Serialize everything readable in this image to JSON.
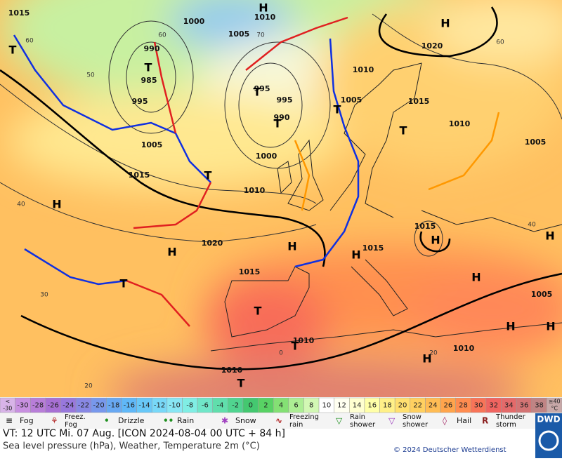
{
  "map": {
    "isobar_labels": [
      "1015",
      "1010",
      "1000",
      "1005",
      "990",
      "985",
      "995",
      "1005",
      "1015",
      "1010",
      "995",
      "995",
      "990",
      "1000",
      "1010",
      "1005",
      "1015",
      "1020",
      "1010",
      "1005",
      "1020",
      "1015",
      "1015",
      "1015",
      "1005",
      "1010",
      "1010",
      "1010"
    ],
    "isotherm_labels": [
      "60",
      "70",
      "60",
      "50",
      "40",
      "30",
      "20",
      "60",
      "40",
      "20",
      "0"
    ],
    "centers": [
      "H",
      "T",
      "T",
      "T",
      "T",
      "H",
      "H",
      "T",
      "H",
      "H",
      "H",
      "T",
      "T",
      "T",
      "T",
      "H",
      "H",
      "H",
      "H",
      "H",
      "T",
      "H",
      "T"
    ]
  },
  "color_scale": {
    "low": {
      "top": "<",
      "bottom": "-30",
      "color": "#d8b4e8"
    },
    "values": [
      -30,
      -28,
      -26,
      -24,
      -22,
      -20,
      -18,
      -16,
      -14,
      -12,
      -10,
      -8,
      -6,
      -4,
      -2,
      0,
      2,
      4,
      6,
      8,
      10,
      12,
      14,
      16,
      18,
      20,
      22,
      24,
      26,
      28,
      30,
      32,
      34,
      36,
      38
    ],
    "colors": [
      "#c890e0",
      "#b87ed8",
      "#a870d4",
      "#9878dc",
      "#8888e4",
      "#7898ec",
      "#68a8f2",
      "#60b8f8",
      "#68c8f8",
      "#78d8f8",
      "#88e6f4",
      "#80eee4",
      "#70e6c8",
      "#60deac",
      "#50d490",
      "#44c870",
      "#58d264",
      "#84e074",
      "#acee94",
      "#d2f8b4",
      "#ffffff",
      "#fffff0",
      "#ffffd0",
      "#ffffa8",
      "#fff088",
      "#ffe070",
      "#ffd060",
      "#ffbc54",
      "#ffa44c",
      "#ff8c50",
      "#f87458",
      "#f06460",
      "#e46a6a",
      "#d47474",
      "#c08484"
    ],
    "high": {
      "top": "≥40",
      "bottom": "°C",
      "color": "#c8a8a8"
    }
  },
  "legend": [
    {
      "lines": [
        "Fog"
      ]
    },
    {
      "lines": [
        "Freez.",
        "Fog"
      ]
    },
    {
      "lines": [
        "Drizzle"
      ]
    },
    {
      "lines": [
        "Rain"
      ]
    },
    {
      "lines": [
        "Snow"
      ]
    },
    {
      "lines": [
        "Freezing",
        "rain"
      ]
    },
    {
      "lines": [
        "Rain",
        "shower"
      ]
    },
    {
      "lines": [
        "Snow",
        "shower"
      ]
    },
    {
      "lines": [
        "Hail"
      ]
    },
    {
      "lines": [
        "Thunder",
        "storm"
      ]
    }
  ],
  "logo": "DWD",
  "footer": {
    "valid_time": "VT: 12 UTC Mi.  07 Aug. [ICON 2024-08-04  00 UTC + 84 h]",
    "description": "Sea level pressure (hPa), Weather, Temperature 2m (°C)",
    "copyright": "© 2024 Deutscher Wetterdienst"
  }
}
